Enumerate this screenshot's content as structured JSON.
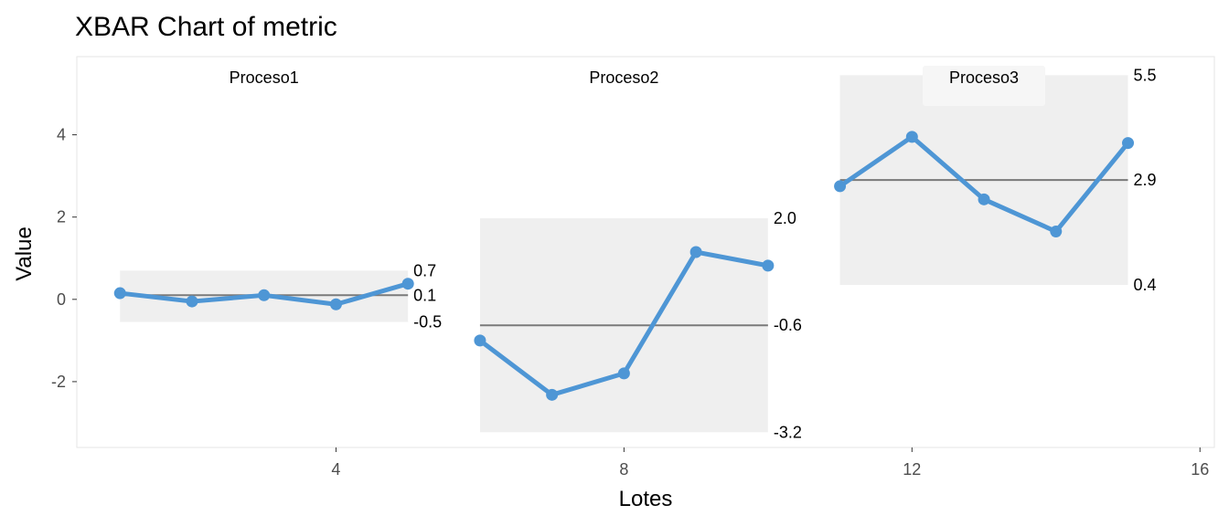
{
  "chart_data": {
    "type": "line",
    "title": "XBAR Chart of metric",
    "xlabel": "Lotes",
    "ylabel": "Value",
    "xlim": [
      0.4,
      16.2
    ],
    "ylim": [
      -3.6,
      5.9
    ],
    "x_ticks": [
      4,
      8,
      12,
      16
    ],
    "y_ticks": [
      -2,
      0,
      2,
      4
    ],
    "x_tick_labels": [
      "4",
      "8",
      "12",
      "16"
    ],
    "y_tick_labels": [
      "-2",
      "0",
      "2",
      "4"
    ],
    "grid": false,
    "colors": {
      "line": "#4e96d5",
      "center_line": "#7a7a7a",
      "control_band": "#efefef",
      "label_box": "#f6f6f6",
      "panel_border": "#e6e6e6",
      "tick": "#333333"
    },
    "groups": [
      {
        "name": "Proceso1",
        "x": [
          1,
          2,
          3,
          4,
          5
        ],
        "y": [
          0.15,
          -0.05,
          0.1,
          -0.12,
          0.38
        ],
        "center": 0.1,
        "ucl": 0.7,
        "lcl": -0.55,
        "center_label": "0.1",
        "ucl_label": "0.7",
        "lcl_label": "-0.5"
      },
      {
        "name": "Proceso2",
        "x": [
          6,
          7,
          8,
          9,
          10
        ],
        "y": [
          -1.0,
          -2.32,
          -1.8,
          1.15,
          0.82
        ],
        "center": -0.63,
        "ucl": 1.97,
        "lcl": -3.23,
        "center_label": "-0.6",
        "ucl_label": "2.0",
        "lcl_label": "-3.2"
      },
      {
        "name": "Proceso3",
        "x": [
          11,
          12,
          13,
          14,
          15
        ],
        "y": [
          2.75,
          3.95,
          2.43,
          1.65,
          3.8
        ],
        "center": 2.9,
        "ucl": 5.45,
        "lcl": 0.35,
        "center_label": "2.9",
        "ucl_label": "5.5",
        "lcl_label": "0.4"
      }
    ]
  }
}
